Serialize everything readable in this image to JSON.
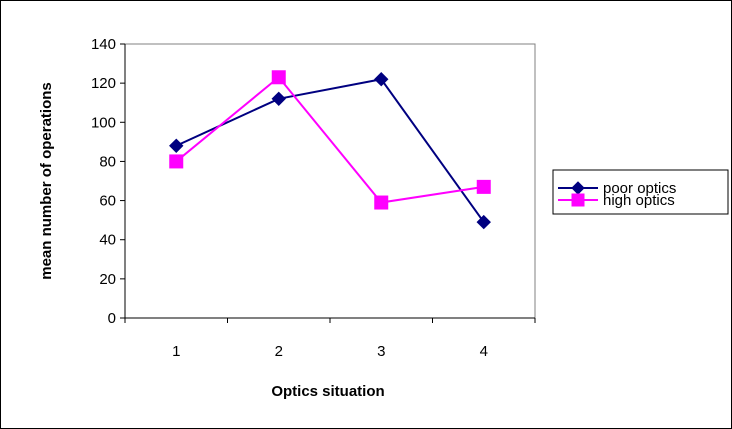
{
  "chart_data": {
    "type": "line",
    "title": "",
    "xlabel": "Optics situation",
    "ylabel": "mean number of operations",
    "categories": [
      "1",
      "2",
      "3",
      "4"
    ],
    "ylim": [
      0,
      140
    ],
    "yticks": [
      "0",
      "20",
      "40",
      "60",
      "80",
      "100",
      "120",
      "140"
    ],
    "grid": false,
    "legend_position": "right",
    "series": [
      {
        "name": "poor optics",
        "values": [
          88,
          112,
          122,
          49
        ],
        "color": "#000080",
        "marker": "diamond"
      },
      {
        "name": "high optics",
        "values": [
          80,
          123,
          59,
          67
        ],
        "color": "#ff00ff",
        "marker": "square"
      }
    ]
  }
}
